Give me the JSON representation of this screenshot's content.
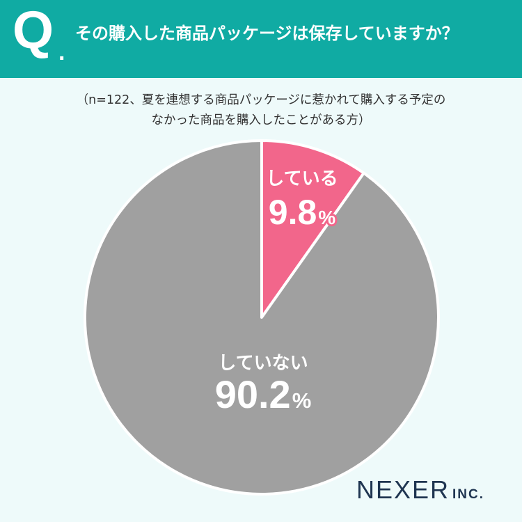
{
  "header": {
    "q_mark": "Q",
    "q_dot": ".",
    "title": "その購入した商品パッケージは保存していますか？"
  },
  "subtitle": {
    "line1": "（n=122、夏を連想する商品パッケージに惹かれて購入する予定の",
    "line2": "なかった商品を購入したことがある方）"
  },
  "brand": {
    "name": "NEXER",
    "suffix": "INC."
  },
  "chart_data": {
    "type": "pie",
    "title": "その購入した商品パッケージは保存していますか？",
    "slices": [
      {
        "label": "している",
        "value": 9.8,
        "value_text": "9.8",
        "unit": "%",
        "color": "#f2668b"
      },
      {
        "label": "していない",
        "value": 90.2,
        "value_text": "90.2",
        "unit": "%",
        "color": "#a0a0a0"
      }
    ],
    "start_angle": "12 o'clock",
    "direction": "clockwise"
  }
}
